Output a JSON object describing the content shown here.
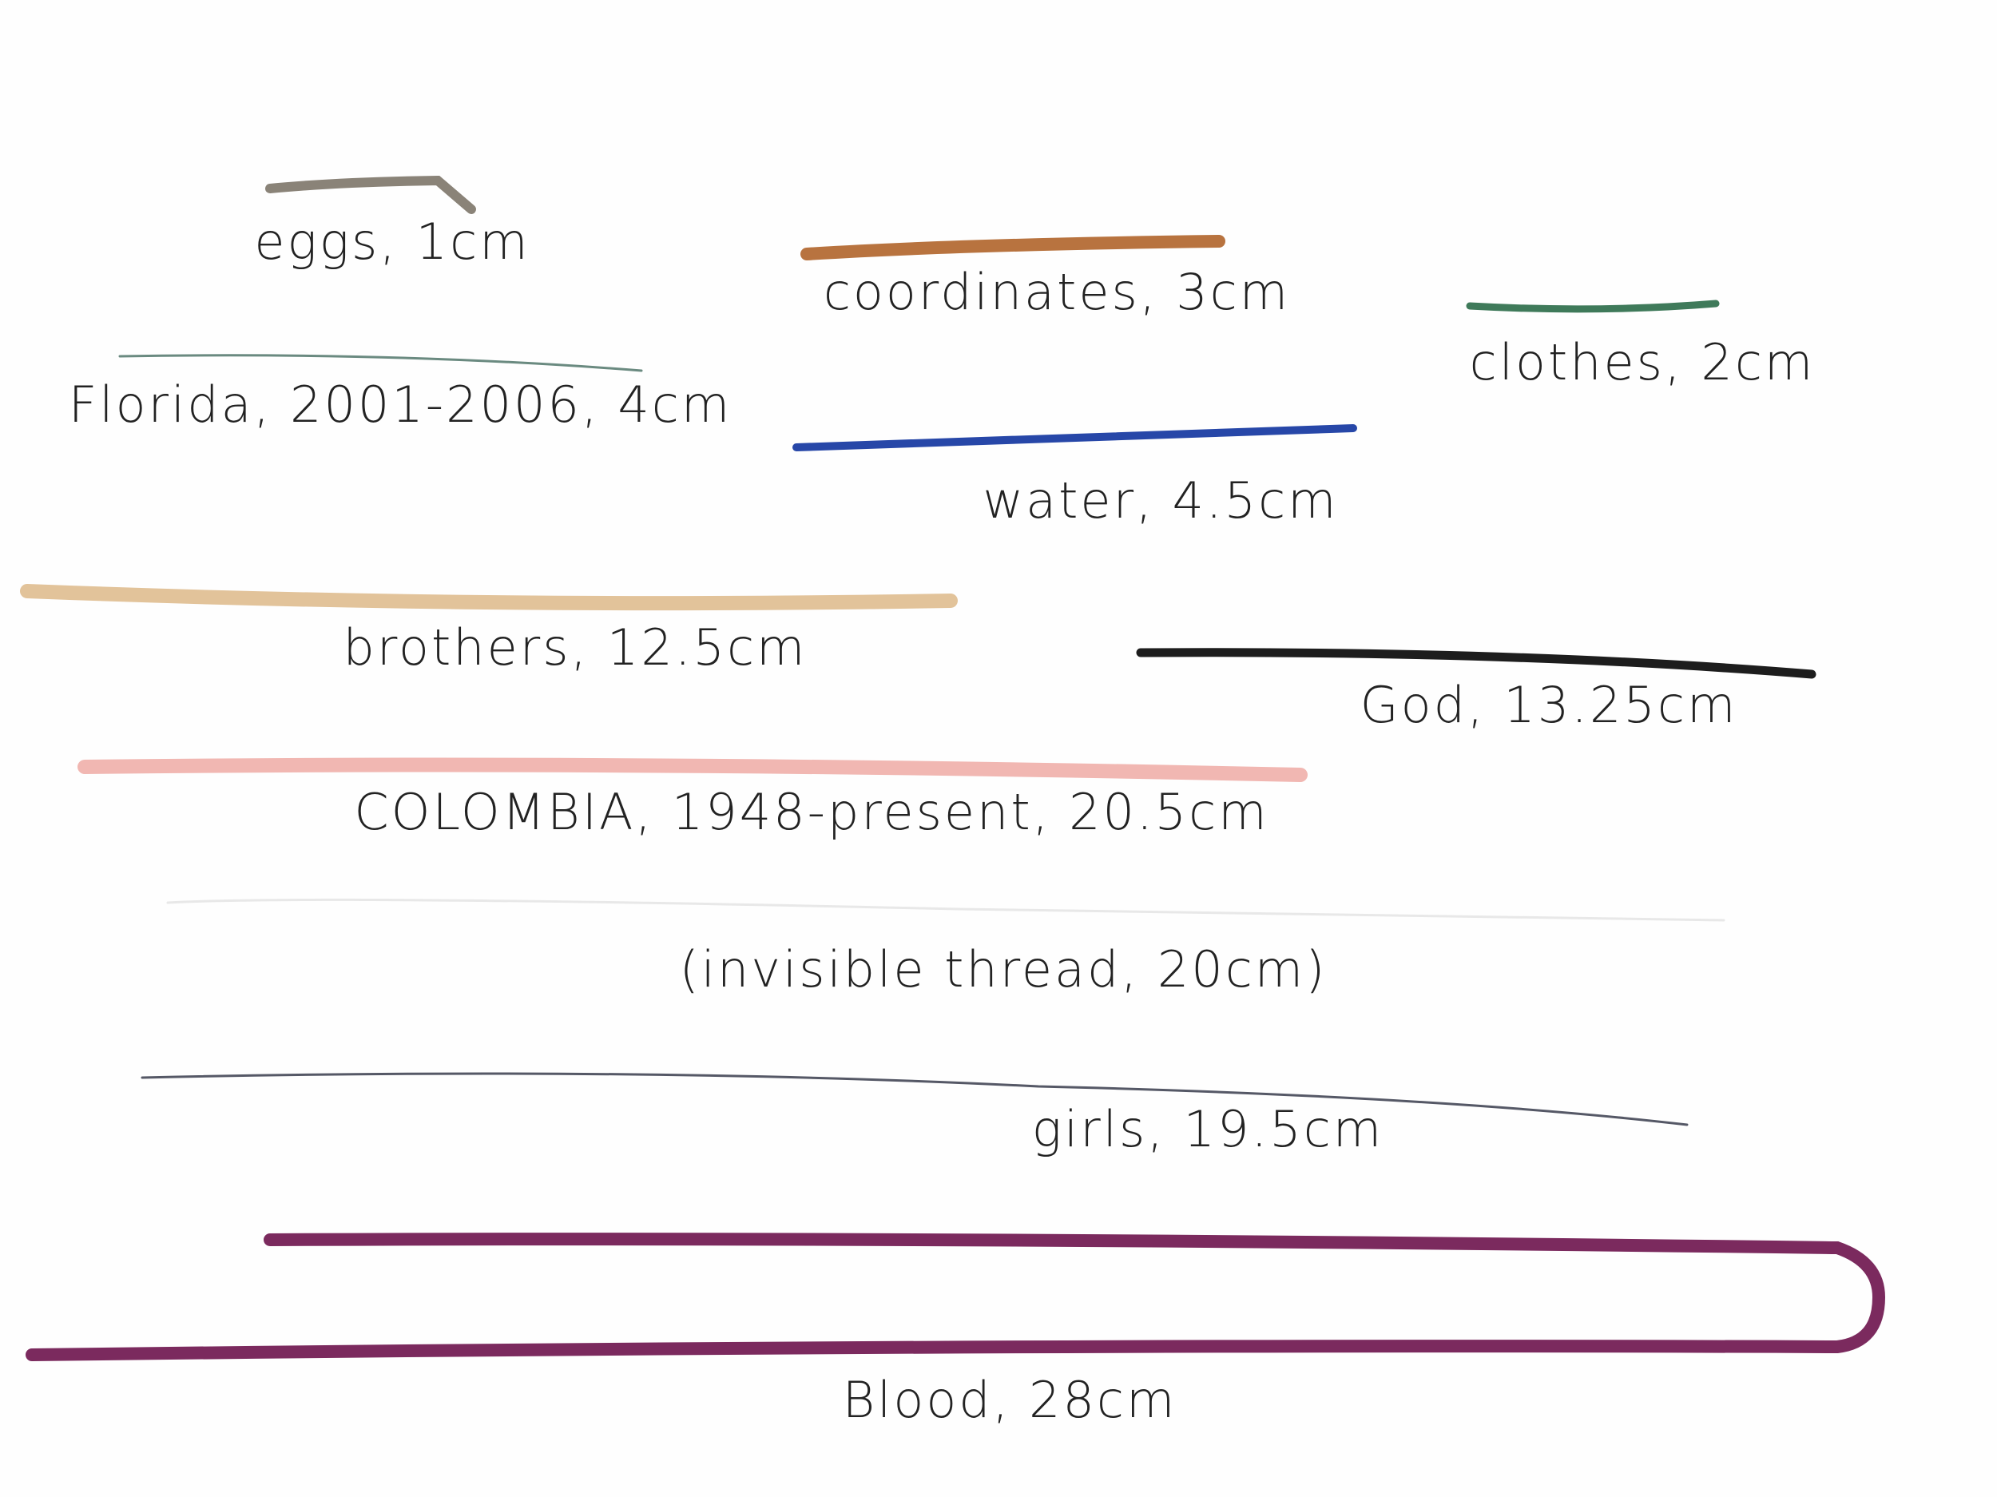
{
  "threads": [
    {
      "label": "eggs, 1cm"
    },
    {
      "label": "coordinates, 3cm"
    },
    {
      "label": "clothes, 2cm"
    },
    {
      "label": "Florida, 2001-2006, 4cm"
    },
    {
      "label": "water, 4.5cm"
    },
    {
      "label": "brothers, 12.5cm"
    },
    {
      "label": "God, 13.25cm"
    },
    {
      "label": "COLOMBIA, 1948-present, 20.5cm"
    },
    {
      "label": "(invisible thread, 20cm)"
    },
    {
      "label": "girls, 19.5cm"
    },
    {
      "label": "Blood, 28cm"
    }
  ]
}
